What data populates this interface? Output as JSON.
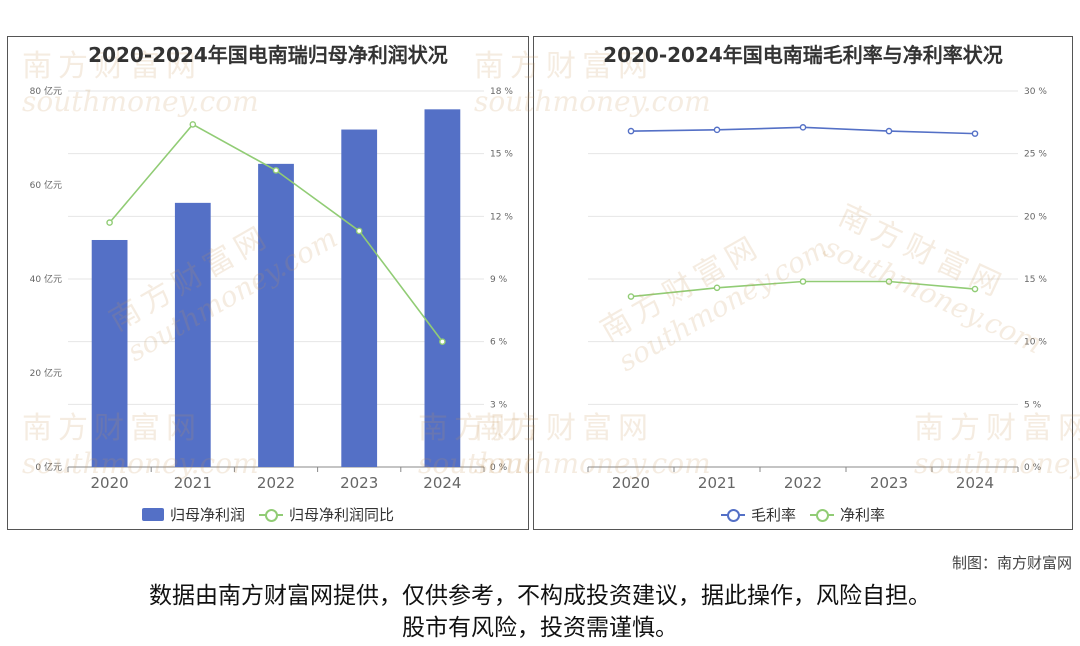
{
  "chart_data": [
    {
      "type": "bar",
      "title": "2020-2024年国电南瑞归母净利润状况",
      "categories": [
        "2020",
        "2021",
        "2022",
        "2023",
        "2024"
      ],
      "series": [
        {
          "name": "归母净利润",
          "type": "bar",
          "axis": "left",
          "values": [
            48.3,
            56.2,
            64.5,
            71.8,
            76.1
          ]
        },
        {
          "name": "归母净利润同比",
          "type": "line",
          "axis": "right",
          "values": [
            11.7,
            16.4,
            14.2,
            11.3,
            6.0
          ]
        }
      ],
      "y_left": {
        "min": 0,
        "max": 80,
        "ticks": [
          "0 亿元",
          "20 亿元",
          "40 亿元",
          "60 亿元",
          "80 亿元"
        ]
      },
      "y_right": {
        "min": 0,
        "max": 18,
        "ticks": [
          "0 %",
          "3 %",
          "6 %",
          "9 %",
          "12 %",
          "15 %",
          "18 %"
        ]
      },
      "colors": {
        "bar": "#5470c6",
        "line": "#91cc75"
      },
      "grid": true,
      "legend_position": "bottom"
    },
    {
      "type": "line",
      "title": "2020-2024年国电南瑞毛利率与净利率状况",
      "categories": [
        "2020",
        "2021",
        "2022",
        "2023",
        "2024"
      ],
      "series": [
        {
          "name": "毛利率",
          "values": [
            26.8,
            26.9,
            27.1,
            26.8,
            26.6
          ]
        },
        {
          "name": "净利率",
          "values": [
            13.6,
            14.3,
            14.8,
            14.8,
            14.2
          ]
        }
      ],
      "y_right": {
        "min": 0,
        "max": 30,
        "ticks": [
          "0 %",
          "5 %",
          "10 %",
          "15 %",
          "20 %",
          "25 %",
          "30 %"
        ]
      },
      "colors": {
        "毛利率": "#5470c6",
        "净利率": "#91cc75"
      },
      "grid": true,
      "legend_position": "bottom"
    }
  ],
  "watermark": {
    "cn": "南方财富网",
    "en": "southmoney.com"
  },
  "credit": "制图：南方财富网",
  "disclaimer": {
    "line1": "数据由南方财富网提供，仅供参考，不构成投资建议，据此操作，风险自担。",
    "line2": "股市有风险，投资需谨慎。"
  }
}
